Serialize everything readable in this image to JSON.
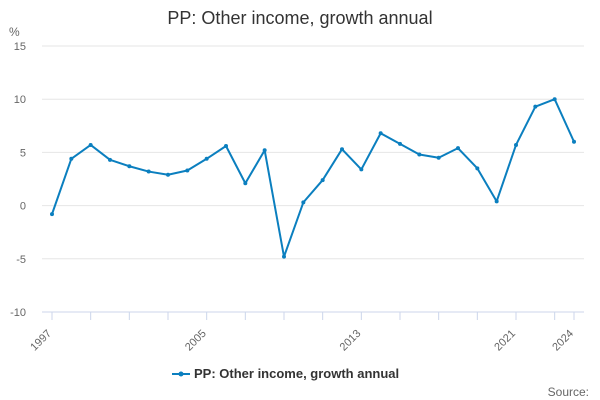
{
  "chart_data": {
    "type": "line",
    "title": "PP: Other income, growth annual",
    "ylabel": "%",
    "ylim": [
      -10,
      15
    ],
    "yticks": [
      -10,
      -5,
      0,
      5,
      10,
      15
    ],
    "xlim": [
      1997,
      2024
    ],
    "xtick_labels": [
      "1997",
      "2005",
      "2013",
      "2021",
      "2024"
    ],
    "grid": true,
    "legend_position": "bottom",
    "source_label": "Source:",
    "series": [
      {
        "name": "PP: Other income, growth annual",
        "color": "#0b7fbf",
        "x": [
          1997,
          1998,
          1999,
          2000,
          2001,
          2002,
          2003,
          2004,
          2005,
          2006,
          2007,
          2008,
          2009,
          2010,
          2011,
          2012,
          2013,
          2014,
          2015,
          2016,
          2017,
          2018,
          2019,
          2020,
          2021,
          2022,
          2023,
          2024
        ],
        "values": [
          -0.8,
          4.4,
          5.7,
          4.3,
          3.7,
          3.2,
          2.9,
          3.3,
          4.4,
          5.6,
          2.1,
          5.2,
          -4.8,
          0.3,
          2.4,
          5.3,
          3.4,
          6.8,
          5.8,
          4.8,
          4.5,
          5.4,
          3.5,
          0.4,
          5.7,
          9.3,
          10.0,
          6.0
        ]
      }
    ]
  }
}
